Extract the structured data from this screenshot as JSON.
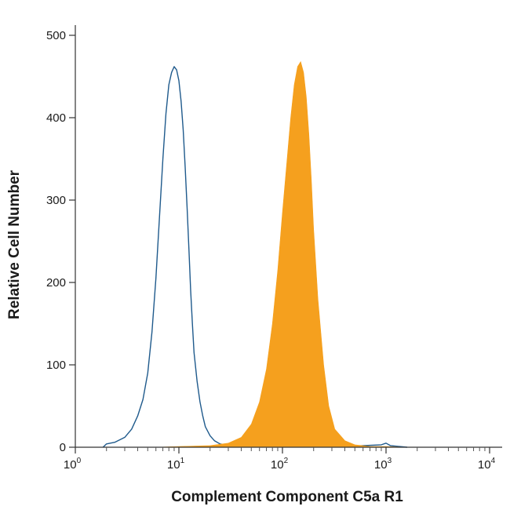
{
  "chart_data": {
    "type": "area",
    "xlabel": "Complement Component C5a R1",
    "ylabel": "Relative Cell Number",
    "x_scale": "log",
    "xlim": [
      1,
      10000
    ],
    "ylim": [
      0,
      500
    ],
    "x_ticks": [
      {
        "value": 1,
        "base": "10",
        "exp": "0"
      },
      {
        "value": 10,
        "base": "10",
        "exp": "1"
      },
      {
        "value": 100,
        "base": "10",
        "exp": "2"
      },
      {
        "value": 1000,
        "base": "10",
        "exp": "3"
      },
      {
        "value": 10000,
        "base": "10",
        "exp": "4"
      }
    ],
    "y_ticks": [
      "0",
      "100",
      "200",
      "300",
      "400",
      "500"
    ],
    "grid": false,
    "series": [
      {
        "style": "outline",
        "color": "#1f5a8c",
        "x": [
          1.85,
          2.0,
          2.4,
          3.0,
          3.5,
          4.0,
          4.5,
          5.0,
          5.5,
          6.0,
          6.5,
          7.0,
          7.5,
          8.0,
          8.5,
          9.0,
          9.5,
          10.0,
          10.5,
          11.0,
          11.5,
          12.0,
          12.5,
          13.0,
          13.5,
          14.0,
          15.0,
          16.0,
          17.0,
          18.0,
          20.0,
          22.0,
          25.0,
          28.0,
          32.0,
          38.0,
          45.0,
          60.0,
          80.0,
          120.0,
          200.0,
          400.0,
          900.0,
          1000.0,
          1100.0,
          1600.0
        ],
        "y": [
          0,
          4,
          6,
          12,
          22,
          38,
          58,
          90,
          140,
          205,
          280,
          350,
          405,
          440,
          455,
          462,
          458,
          445,
          420,
          385,
          340,
          290,
          240,
          190,
          150,
          115,
          80,
          55,
          38,
          25,
          14,
          8,
          4,
          3,
          2,
          2,
          1,
          1,
          1,
          1,
          1,
          1,
          3,
          5,
          2,
          0
        ]
      },
      {
        "style": "filled",
        "color": "#f5a01e",
        "x": [
          6.0,
          10.0,
          20.0,
          30.0,
          40.0,
          50.0,
          60.0,
          70.0,
          80.0,
          90.0,
          100.0,
          110.0,
          120.0,
          130.0,
          140.0,
          150.0,
          160.0,
          170.0,
          180.0,
          190.0,
          200.0,
          220.0,
          250.0,
          280.0,
          320.0,
          400.0,
          500.0,
          700.0,
          1000.0,
          1500.0
        ],
        "y": [
          0,
          1,
          2,
          5,
          12,
          28,
          55,
          95,
          150,
          215,
          285,
          345,
          400,
          440,
          462,
          468,
          455,
          425,
          380,
          325,
          265,
          180,
          100,
          50,
          22,
          8,
          3,
          1,
          1,
          0
        ]
      }
    ]
  }
}
